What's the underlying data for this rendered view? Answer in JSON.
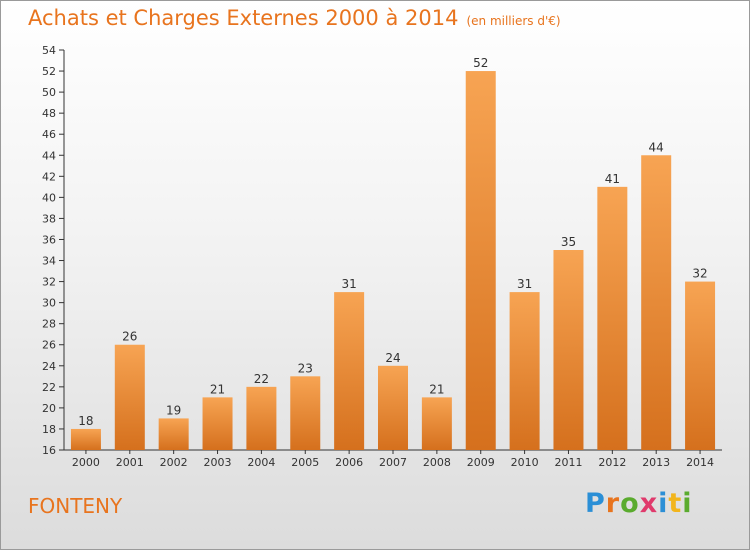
{
  "title": "Achats et Charges Externes 2000 à 2014",
  "subtitle": "(en milliers d'€)",
  "place": "FONTENY",
  "logo": {
    "letters": [
      {
        "ch": "P",
        "color": "#2b8fd6"
      },
      {
        "ch": "r",
        "color": "#e8741e"
      },
      {
        "ch": "o",
        "color": "#5aab2e"
      },
      {
        "ch": "x",
        "color": "#e03a6c"
      },
      {
        "ch": "i",
        "color": "#2b8fd6"
      },
      {
        "ch": "t",
        "color": "#f2b51c"
      },
      {
        "ch": "i",
        "color": "#5aab2e"
      }
    ]
  },
  "colors": {
    "accent": "#e8741e",
    "bar_light": "#f7a453",
    "bar_dark": "#d5701d"
  },
  "chart_data": {
    "type": "bar",
    "title": "Achats et Charges Externes 2000 à 2014",
    "subtitle": "(en milliers d'€)",
    "xlabel": "",
    "ylabel": "",
    "categories": [
      "2000",
      "2001",
      "2002",
      "2003",
      "2004",
      "2005",
      "2006",
      "2007",
      "2008",
      "2009",
      "2010",
      "2011",
      "2012",
      "2013",
      "2014"
    ],
    "values": [
      18,
      26,
      19,
      21,
      22,
      23,
      31,
      24,
      21,
      52,
      31,
      35,
      41,
      44,
      32
    ],
    "ylim": [
      16,
      54
    ],
    "yticks": [
      16,
      18,
      20,
      22,
      24,
      26,
      28,
      30,
      32,
      34,
      36,
      38,
      40,
      42,
      44,
      46,
      48,
      50,
      52,
      54
    ],
    "grid": false,
    "legend": "none"
  }
}
